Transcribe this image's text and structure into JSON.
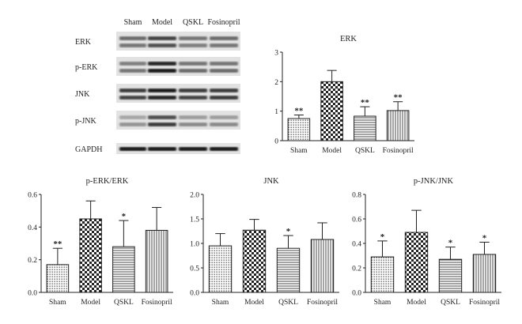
{
  "blot": {
    "lanes": [
      "Sham",
      "Model",
      "QSKL",
      "Fosinopril"
    ],
    "rows": [
      "ERK",
      "p-ERK",
      "JNK",
      "p-JNK",
      "GAPDH"
    ]
  },
  "chart_data": [
    {
      "id": "erk",
      "type": "bar",
      "title": "ERK",
      "categories": [
        "Sham",
        "Model",
        "QSKL",
        "Fosinopril"
      ],
      "values": [
        0.75,
        2.0,
        0.83,
        1.02
      ],
      "errors": [
        0.12,
        0.38,
        0.32,
        0.3
      ],
      "significance": [
        "**",
        "",
        "**",
        "**"
      ],
      "ylim": [
        0,
        3
      ],
      "yticks": [
        "0",
        "1",
        "2",
        "3"
      ],
      "xlabel": "",
      "ylabel": ""
    },
    {
      "id": "perk",
      "type": "bar",
      "title": "p-ERK/ERK",
      "categories": [
        "Sham",
        "Model",
        "QSKL",
        "Fosinopril"
      ],
      "values": [
        0.17,
        0.45,
        0.28,
        0.38
      ],
      "errors": [
        0.1,
        0.11,
        0.16,
        0.14
      ],
      "significance": [
        "**",
        "",
        "*",
        ""
      ],
      "ylim": [
        0,
        0.6
      ],
      "yticks": [
        "0.0",
        "0.2",
        "0.4",
        "0.6"
      ],
      "xlabel": "",
      "ylabel": ""
    },
    {
      "id": "jnk",
      "type": "bar",
      "title": "JNK",
      "categories": [
        "Sham",
        "Model",
        "QSKL",
        "Fosinopril"
      ],
      "values": [
        0.95,
        1.27,
        0.9,
        1.08
      ],
      "errors": [
        0.25,
        0.22,
        0.26,
        0.34
      ],
      "significance": [
        "",
        "",
        "*",
        ""
      ],
      "ylim": [
        0,
        2
      ],
      "yticks": [
        "0.0",
        "0.5",
        "1.0",
        "1.5",
        "2.0"
      ],
      "xlabel": "",
      "ylabel": ""
    },
    {
      "id": "pjnk",
      "type": "bar",
      "title": "p-JNK/JNK",
      "categories": [
        "Sham",
        "Model",
        "QSKL",
        "Fosinopril"
      ],
      "values": [
        0.29,
        0.49,
        0.27,
        0.31
      ],
      "errors": [
        0.13,
        0.18,
        0.1,
        0.1
      ],
      "significance": [
        "*",
        "",
        "*",
        "*"
      ],
      "ylim": [
        0,
        0.8
      ],
      "yticks": [
        "0.0",
        "0.2",
        "0.4",
        "0.6",
        "0.8"
      ],
      "xlabel": "",
      "ylabel": ""
    }
  ]
}
